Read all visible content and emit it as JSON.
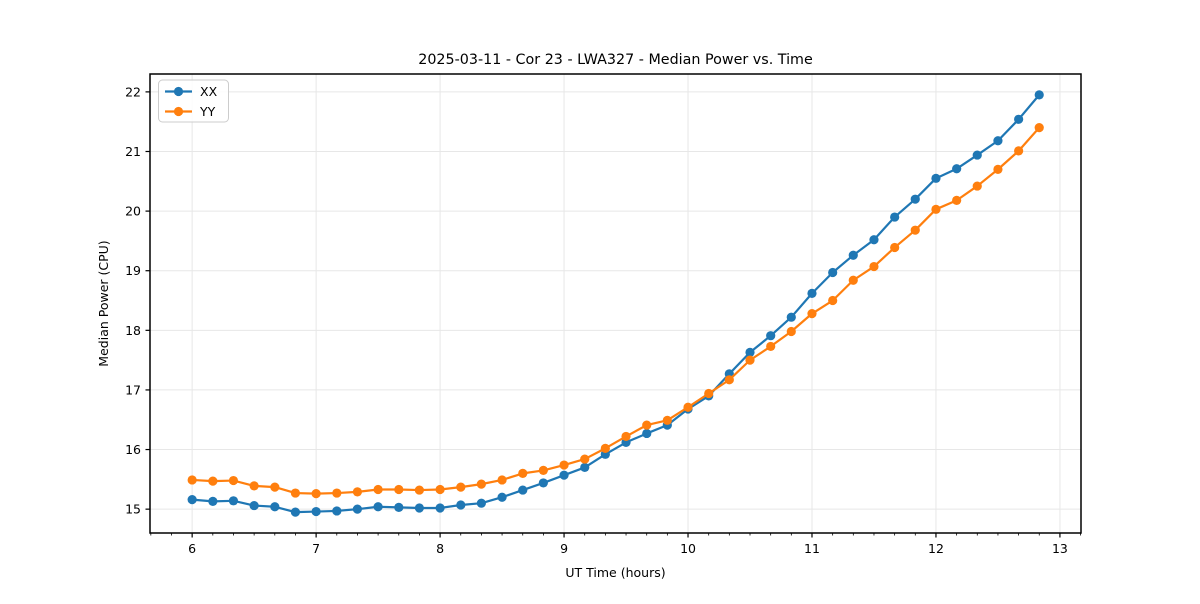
{
  "figure": {
    "title": "2025-03-11 - Cor 23 - LWA327 - Median Power vs. Time",
    "xlabel": "UT Time (hours)",
    "ylabel": "Median Power (CPU)"
  },
  "chart_data": {
    "type": "line",
    "title": "2025-03-11 - Cor 23 - LWA327 - Median Power vs. Time",
    "xlabel": "UT Time (hours)",
    "ylabel": "Median Power (CPU)",
    "xlim": [
      5.66,
      13.17
    ],
    "ylim": [
      14.6,
      22.3
    ],
    "x_ticks": [
      6,
      7,
      8,
      9,
      10,
      11,
      12,
      13
    ],
    "y_ticks": [
      15,
      16,
      17,
      18,
      19,
      20,
      21,
      22
    ],
    "x_minor_tick_interval": 0.1667,
    "grid": true,
    "grid_color": "#e7e7e7",
    "spine_color": "#000000",
    "legend_position": "upper left",
    "marker": "circle",
    "x": [
      6.0,
      6.167,
      6.333,
      6.5,
      6.667,
      6.833,
      7.0,
      7.167,
      7.333,
      7.5,
      7.667,
      7.833,
      8.0,
      8.167,
      8.333,
      8.5,
      8.667,
      8.833,
      9.0,
      9.167,
      9.333,
      9.5,
      9.667,
      9.833,
      10.0,
      10.167,
      10.333,
      10.5,
      10.667,
      10.833,
      11.0,
      11.167,
      11.333,
      11.5,
      11.667,
      11.833,
      12.0,
      12.167,
      12.333,
      12.5,
      12.667,
      12.833
    ],
    "series": [
      {
        "name": "XX",
        "color": "#1f77b4",
        "values": [
          15.16,
          15.13,
          15.14,
          15.06,
          15.04,
          14.95,
          14.96,
          14.97,
          15.0,
          15.04,
          15.03,
          15.02,
          15.02,
          15.07,
          15.1,
          15.2,
          15.32,
          15.44,
          15.57,
          15.7,
          15.92,
          16.12,
          16.27,
          16.41,
          16.68,
          16.9,
          17.27,
          17.63,
          17.91,
          18.22,
          18.62,
          18.97,
          19.26,
          19.52,
          19.9,
          20.2,
          20.55,
          20.71,
          20.94,
          21.18,
          21.54,
          21.95
        ]
      },
      {
        "name": "YY",
        "color": "#ff7f0e",
        "values": [
          15.49,
          15.47,
          15.48,
          15.39,
          15.37,
          15.27,
          15.26,
          15.27,
          15.29,
          15.33,
          15.33,
          15.32,
          15.33,
          15.37,
          15.42,
          15.49,
          15.6,
          15.65,
          15.74,
          15.84,
          16.02,
          16.22,
          16.41,
          16.49,
          16.71,
          16.94,
          17.17,
          17.5,
          17.73,
          17.98,
          18.28,
          18.5,
          18.84,
          19.07,
          19.39,
          19.68,
          20.03,
          20.18,
          20.42,
          20.7,
          21.01,
          21.4
        ]
      }
    ]
  }
}
